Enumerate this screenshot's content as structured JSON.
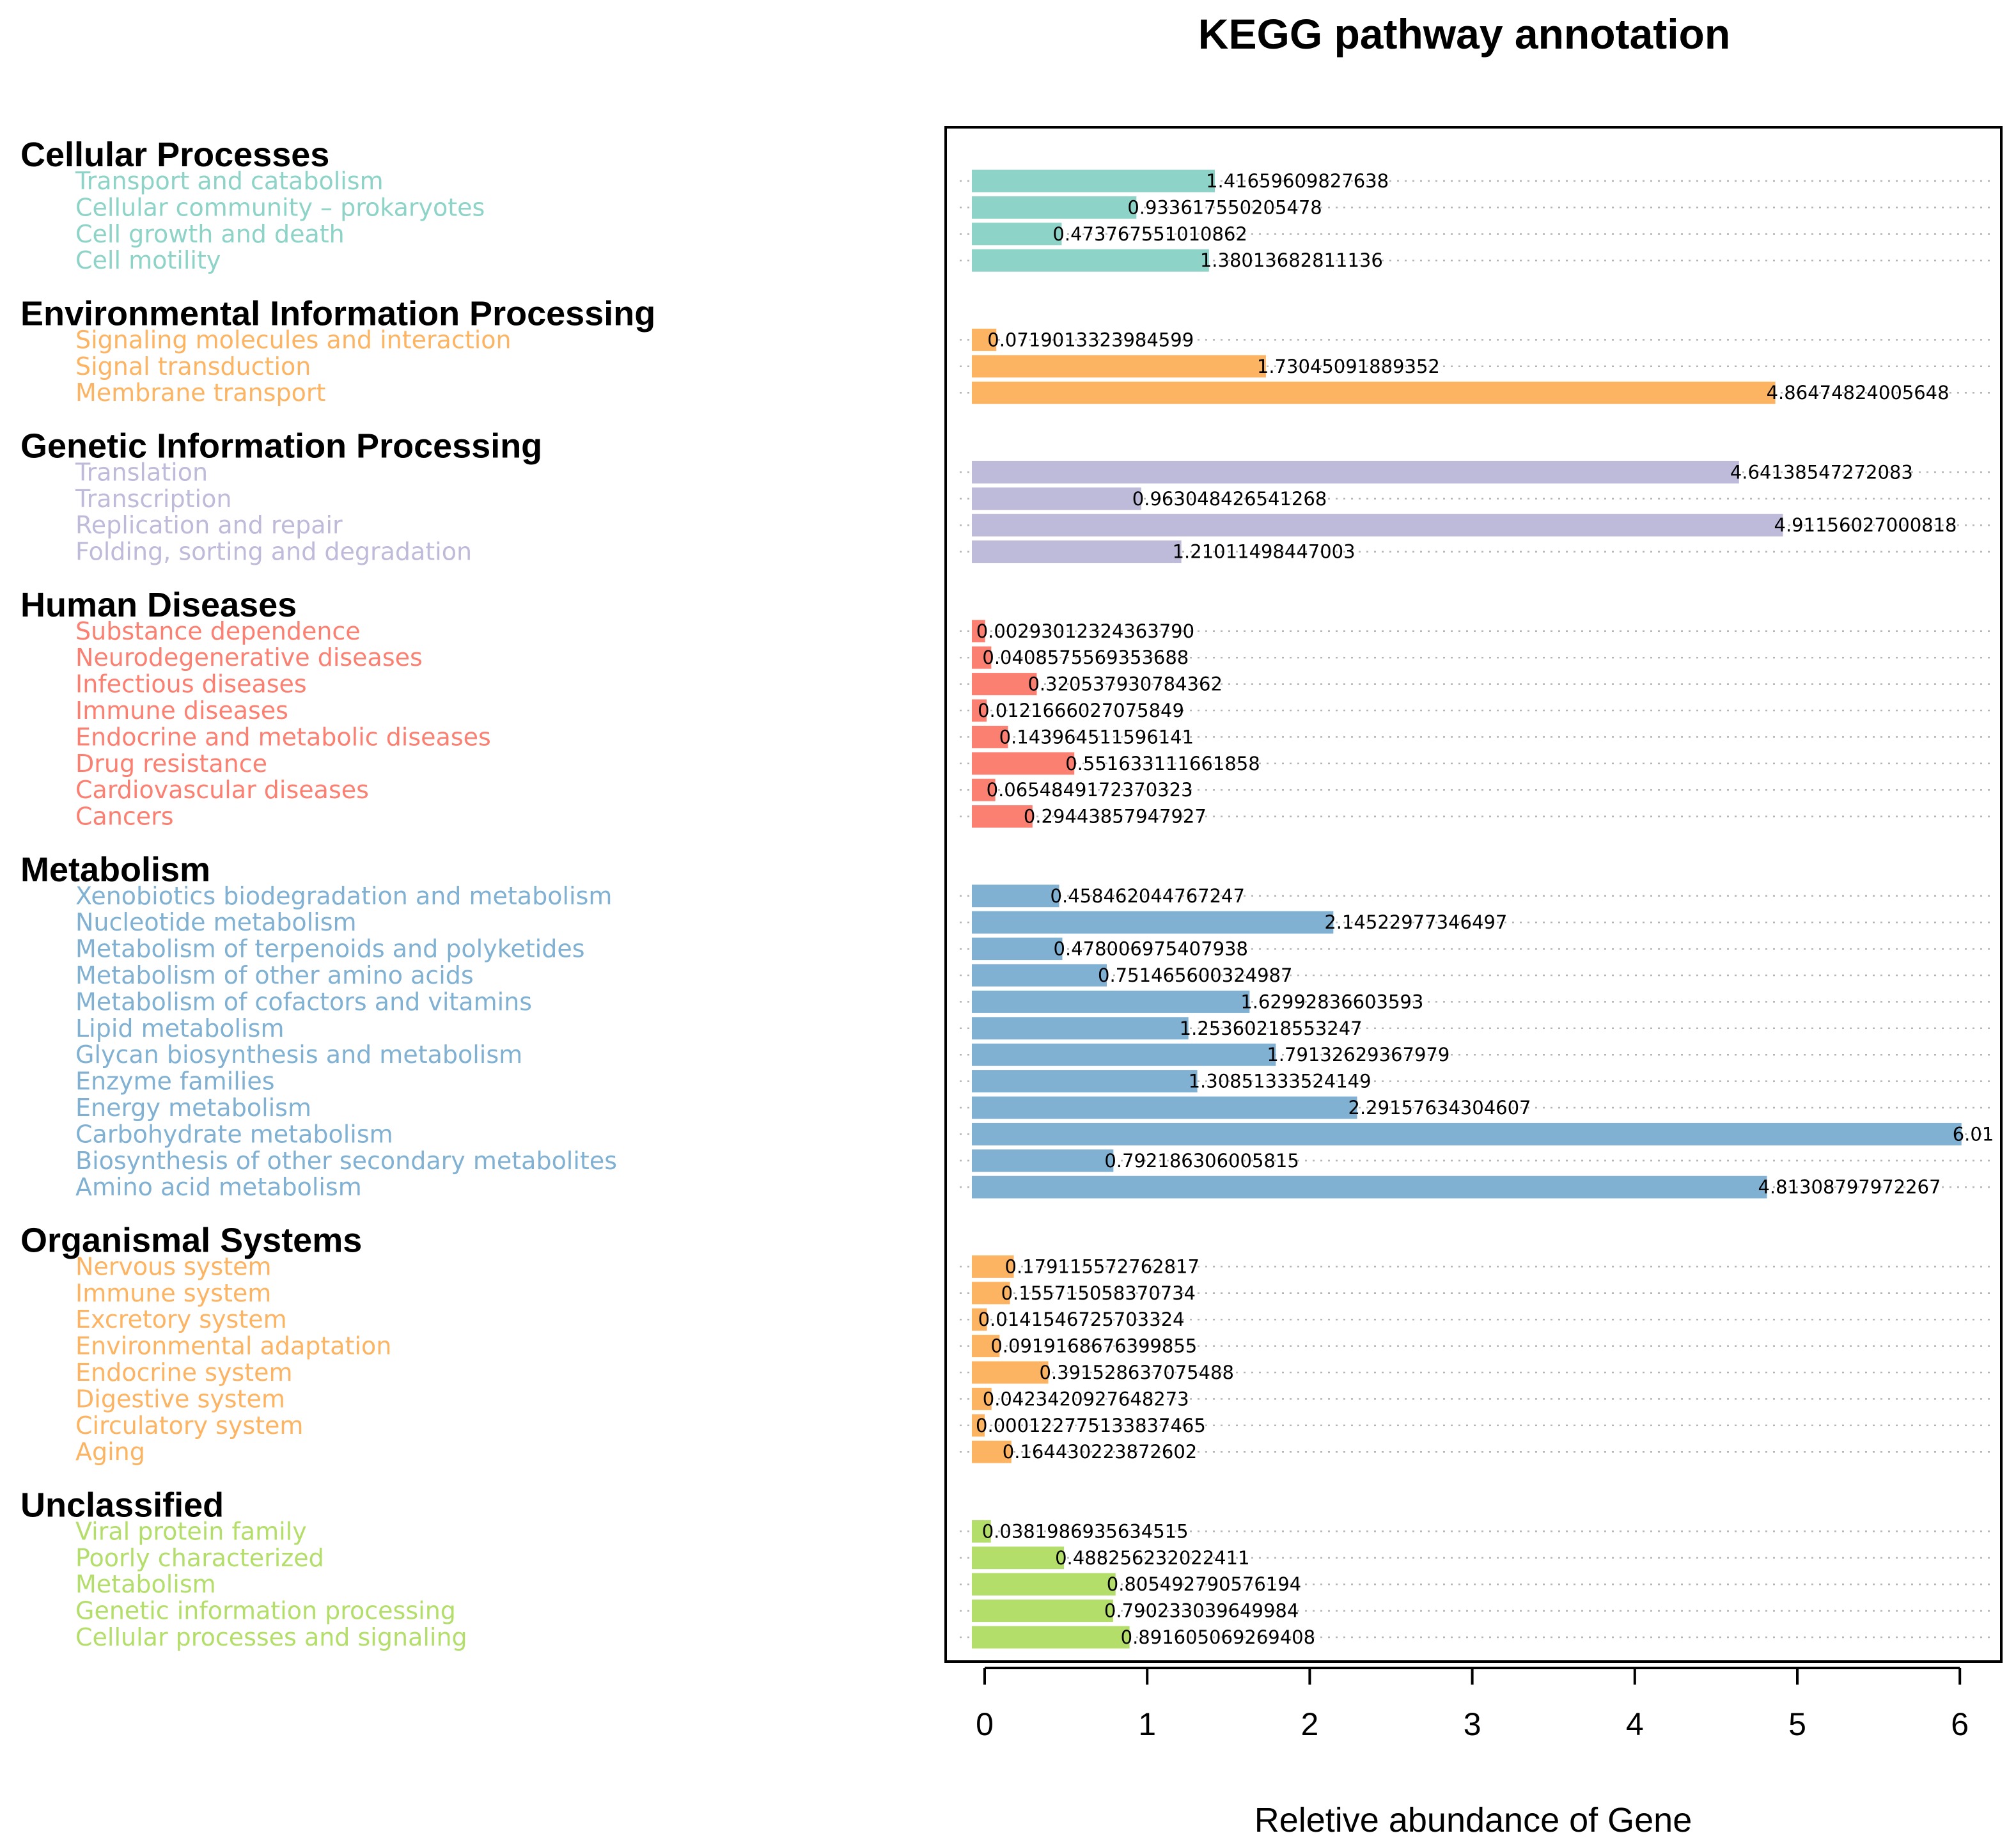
{
  "chart_data": {
    "type": "bar",
    "orientation": "horizontal",
    "title": "KEGG pathway annotation",
    "xlabel": "Reletive abundance of Gene",
    "ylabel": "",
    "xlim": [
      0,
      6
    ],
    "xticks": [
      "0",
      "1",
      "2",
      "3",
      "4",
      "5",
      "6"
    ],
    "grid": "horizontal dotted per bar",
    "groups": [
      {
        "name": "Cellular Processes",
        "color": "#8dd3c7",
        "items": [
          {
            "label": "Transport and catabolism",
            "value": 1.41659609827638,
            "value_text": "1.41659609827638"
          },
          {
            "label": "Cellular community – prokaryotes",
            "value": 0.933617550205478,
            "value_text": "0.933617550205478"
          },
          {
            "label": "Cell growth and death",
            "value": 0.473767551010862,
            "value_text": "0.473767551010862"
          },
          {
            "label": "Cell motility",
            "value": 1.38013682811136,
            "value_text": "1.38013682811136"
          }
        ]
      },
      {
        "name": "Environmental Information Processing",
        "color": "#fdb462",
        "items": [
          {
            "label": "Signaling molecules and interaction",
            "value": 0.0719013323984599,
            "value_text": "0.0719013323984599"
          },
          {
            "label": "Signal transduction",
            "value": 1.73045091889352,
            "value_text": "1.73045091889352"
          },
          {
            "label": "Membrane transport",
            "value": 4.86474824005648,
            "value_text": "4.86474824005648"
          }
        ]
      },
      {
        "name": "Genetic Information Processing",
        "color": "#bebada",
        "items": [
          {
            "label": "Translation",
            "value": 4.64138547272083,
            "value_text": "4.64138547272083"
          },
          {
            "label": "Transcription",
            "value": 0.963048426541268,
            "value_text": "0.963048426541268"
          },
          {
            "label": "Replication and repair",
            "value": 4.91156027000818,
            "value_text": "4.91156027000818"
          },
          {
            "label": "Folding, sorting and degradation",
            "value": 1.21011498447003,
            "value_text": "1.21011498447003"
          }
        ]
      },
      {
        "name": "Human Diseases",
        "color": "#fb8072",
        "items": [
          {
            "label": "Substance dependence",
            "value": 0.0029301232436379,
            "value_text": "0.00293012324363790"
          },
          {
            "label": "Neurodegenerative diseases",
            "value": 0.0408575569353688,
            "value_text": "0.0408575569353688"
          },
          {
            "label": "Infectious diseases",
            "value": 0.320537930784362,
            "value_text": "0.320537930784362"
          },
          {
            "label": "Immune diseases",
            "value": 0.0121666027075849,
            "value_text": "0.0121666027075849"
          },
          {
            "label": "Endocrine and metabolic diseases",
            "value": 0.143964511596141,
            "value_text": "0.143964511596141"
          },
          {
            "label": "Drug resistance",
            "value": 0.551633111661858,
            "value_text": "0.551633111661858"
          },
          {
            "label": "Cardiovascular diseases",
            "value": 0.0654849172370323,
            "value_text": "0.0654849172370323"
          },
          {
            "label": "Cancers",
            "value": 0.29443857947927,
            "value_text": "0.29443857947927"
          }
        ]
      },
      {
        "name": "Metabolism",
        "color": "#80b1d3",
        "items": [
          {
            "label": "Xenobiotics biodegradation and metabolism",
            "value": 0.458462044767247,
            "value_text": "0.458462044767247"
          },
          {
            "label": "Nucleotide metabolism",
            "value": 2.14522977346497,
            "value_text": "2.14522977346497"
          },
          {
            "label": "Metabolism of terpenoids and polyketides",
            "value": 0.478006975407938,
            "value_text": "0.478006975407938"
          },
          {
            "label": "Metabolism of other amino acids",
            "value": 0.751465600324987,
            "value_text": "0.751465600324987"
          },
          {
            "label": "Metabolism of cofactors and vitamins",
            "value": 1.62992836603593,
            "value_text": "1.62992836603593"
          },
          {
            "label": "Lipid metabolism",
            "value": 1.25360218553247,
            "value_text": "1.25360218553247"
          },
          {
            "label": "Glycan biosynthesis and metabolism",
            "value": 1.79132629367979,
            "value_text": "1.79132629367979"
          },
          {
            "label": "Enzyme families",
            "value": 1.30851333524149,
            "value_text": "1.30851333524149"
          },
          {
            "label": "Energy metabolism",
            "value": 2.29157634304607,
            "value_text": "2.29157634304607"
          },
          {
            "label": "Carbohydrate metabolism",
            "value": 6.01,
            "value_text": "6.01"
          },
          {
            "label": "Biosynthesis of other secondary metabolites",
            "value": 0.792186306005815,
            "value_text": "0.792186306005815"
          },
          {
            "label": "Amino acid metabolism",
            "value": 4.81308797972267,
            "value_text": "4.81308797972267"
          }
        ]
      },
      {
        "name": "Organismal Systems",
        "color": "#fdb462",
        "items": [
          {
            "label": "Nervous system",
            "value": 0.179115572762817,
            "value_text": "0.179115572762817"
          },
          {
            "label": "Immune system",
            "value": 0.155715058370734,
            "value_text": "0.155715058370734"
          },
          {
            "label": "Excretory system",
            "value": 0.0141546725703324,
            "value_text": "0.0141546725703324"
          },
          {
            "label": "Environmental adaptation",
            "value": 0.0919168676399855,
            "value_text": "0.0919168676399855"
          },
          {
            "label": "Endocrine system",
            "value": 0.391528637075488,
            "value_text": "0.391528637075488"
          },
          {
            "label": "Digestive system",
            "value": 0.0423420927648273,
            "value_text": "0.0423420927648273"
          },
          {
            "label": "Circulatory system",
            "value": 0.000122775133837465,
            "value_text": "0.000122775133837465"
          },
          {
            "label": "Aging",
            "value": 0.164430223872602,
            "value_text": "0.164430223872602"
          }
        ]
      },
      {
        "name": "Unclassified",
        "color": "#b3de69",
        "items": [
          {
            "label": "Viral protein family",
            "value": 0.0381986935634515,
            "value_text": "0.0381986935634515"
          },
          {
            "label": "Poorly characterized",
            "value": 0.488256232022411,
            "value_text": "0.488256232022411"
          },
          {
            "label": "Metabolism",
            "value": 0.805492790576194,
            "value_text": "0.805492790576194"
          },
          {
            "label": "Genetic information processing",
            "value": 0.790233039649984,
            "value_text": "0.790233039649984"
          },
          {
            "label": "Cellular processes and signaling",
            "value": 0.891605069269408,
            "value_text": "0.891605069269408"
          }
        ]
      }
    ]
  }
}
